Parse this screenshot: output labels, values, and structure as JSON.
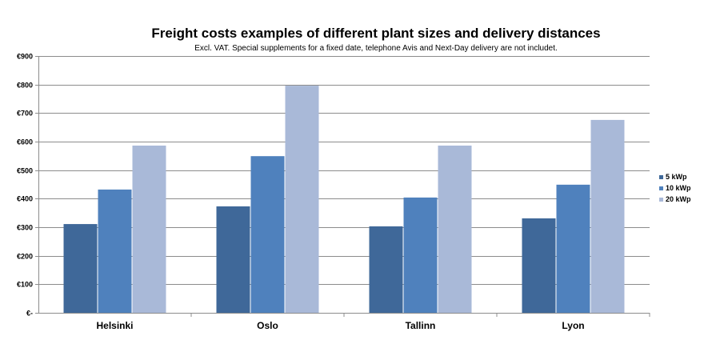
{
  "chart_data": {
    "type": "bar",
    "title": "Freight costs examples of different plant sizes and delivery distances",
    "subtitle": "Excl. VAT. Special supplements for a fixed date, telephone Avis and Next-Day delivery are not includet.",
    "categories": [
      "Helsinki",
      "Oslo",
      "Tallinn",
      "Lyon"
    ],
    "series": [
      {
        "name": "5 kWp",
        "color": "#3f6899",
        "values": [
          311,
          373,
          303,
          331
        ]
      },
      {
        "name": "10 kWp",
        "color": "#4f81bd",
        "values": [
          432,
          549,
          404,
          449
        ]
      },
      {
        "name": "20 kWp",
        "color": "#a9b9d8",
        "values": [
          586,
          796,
          586,
          676
        ]
      }
    ],
    "ylim": [
      0,
      900
    ],
    "yticks": [
      0,
      100,
      200,
      300,
      400,
      500,
      600,
      700,
      800,
      900
    ],
    "ytick_labels": [
      "€-",
      "€100",
      "€200",
      "€300",
      "€400",
      "€500",
      "€600",
      "€700",
      "€800",
      "€900"
    ],
    "xlabel": "",
    "ylabel": "",
    "grid": true,
    "legend_position": "right"
  }
}
